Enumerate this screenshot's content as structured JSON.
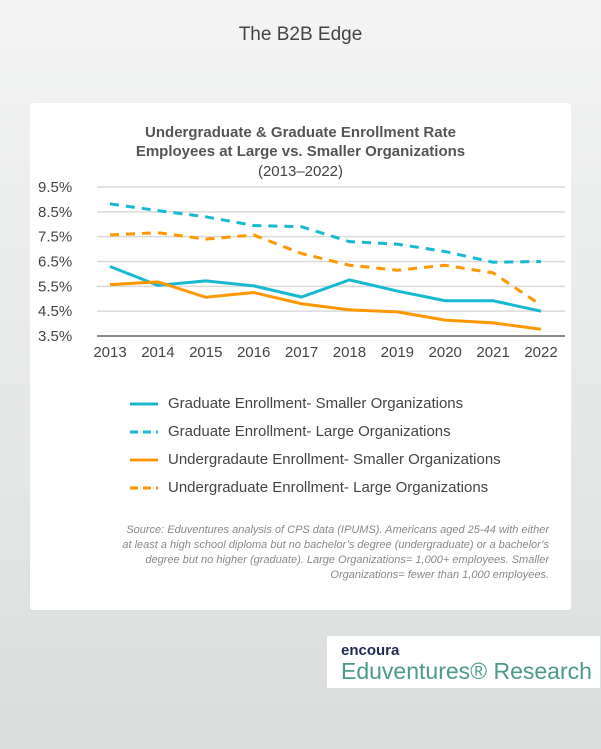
{
  "header": {
    "title": "The B2B Edge"
  },
  "chart_data": {
    "type": "line",
    "title": "Undergraduate & Graduate Enrollment Rate\nEmployees at Large vs. Smaller Organizations",
    "subtitle": "(2013–2022)",
    "categories": [
      "2013",
      "2014",
      "2015",
      "2016",
      "2017",
      "2018",
      "2019",
      "2020",
      "2021",
      "2022"
    ],
    "ylim": [
      3.5,
      9.5
    ],
    "yticks": [
      "9.5%",
      "8.5%",
      "7.5%",
      "6.5%",
      "5.5%",
      "4.5%",
      "3.5%"
    ],
    "grid": true,
    "legend": "bottom",
    "series": [
      {
        "name": "Graduate Enrollment- Smaller Organizations",
        "color": "#17b9d1",
        "dashed": false,
        "values": [
          6.3,
          5.54,
          5.72,
          5.52,
          5.07,
          5.76,
          5.31,
          4.92,
          4.92,
          4.5
        ]
      },
      {
        "name": "Graduate Enrollment- Large Organizations",
        "color": "#17b9d1",
        "dashed": true,
        "values": [
          8.82,
          8.55,
          8.3,
          7.95,
          7.9,
          7.3,
          7.2,
          6.9,
          6.47,
          6.5
        ]
      },
      {
        "name": "Undergradaute Enrollment- Smaller Organizations",
        "color": "#ff9800",
        "dashed": false,
        "values": [
          5.57,
          5.68,
          5.06,
          5.25,
          4.8,
          4.55,
          4.47,
          4.14,
          4.03,
          3.77
        ]
      },
      {
        "name": "Undergraduate Enrollment- Large Organizations",
        "color": "#ff9800",
        "dashed": true,
        "values": [
          7.57,
          7.66,
          7.4,
          7.57,
          6.82,
          6.35,
          6.15,
          6.35,
          6.04,
          4.74
        ]
      }
    ],
    "source": "Source: Eduventures analysis of CPS data (IPUMS). Americans aged 25-44 with either at least a high school diploma but no bachelor’s degree (undergraduate) or a bachelor’s degree but no higher (graduate). Large Organizations= 1,000+ employees. Smaller Organizations= fewer than 1,000 employees."
  },
  "logo": {
    "brand": "encoura",
    "name": "Eduventures® Research"
  }
}
